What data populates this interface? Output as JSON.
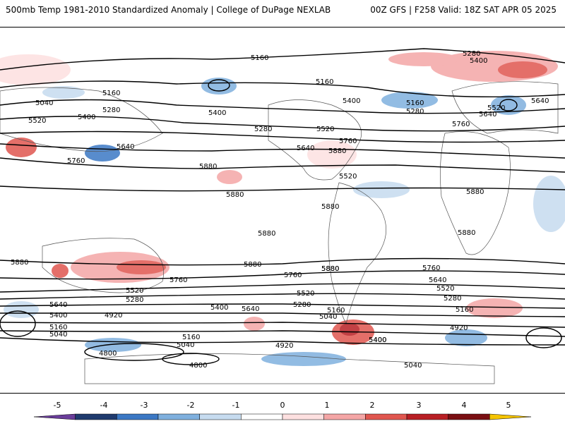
{
  "header": {
    "title": "500mb Temp 1981-2010 Standardized Anomaly | College of DuPage NEXLAB",
    "run_info": "00Z GFS | F258 Valid: 18Z SAT APR 05 2025"
  },
  "colorbar": {
    "ticks": [
      "-5",
      "-4",
      "-3",
      "-2",
      "-1",
      "0",
      "1",
      "2",
      "3",
      "4",
      "5"
    ],
    "colors": [
      "#6a3d9a",
      "#1f3a6e",
      "#3b78c4",
      "#7fb0de",
      "#c6dbef",
      "#ffffff",
      "#fde0e0",
      "#f4a6a6",
      "#e0564f",
      "#b81f24",
      "#7a0f12",
      "#f5c400"
    ]
  },
  "contour_labels": [
    "5160",
    "5280",
    "5400",
    "5040",
    "5160",
    "5280",
    "5400",
    "5520",
    "5640",
    "5760",
    "5160",
    "5280",
    "5400",
    "5520",
    "5640",
    "5760",
    "5880",
    "5160",
    "5280",
    "5400",
    "5520",
    "5640",
    "5760",
    "5880",
    "5880",
    "5880",
    "5880",
    "5880",
    "5880",
    "5880",
    "5760",
    "5640",
    "5520",
    "5400",
    "5280",
    "5160",
    "5040",
    "4920",
    "4800",
    "4800",
    "4920",
    "5040",
    "5160",
    "5280",
    "5400",
    "5520",
    "5640",
    "5760",
    "5880",
    "5040",
    "5160",
    "5280",
    "5400",
    "5520",
    "5640",
    "5760",
    "5160",
    "4920",
    "5040",
    "5400",
    "5520",
    "5640",
    "5880",
    "5880"
  ]
}
